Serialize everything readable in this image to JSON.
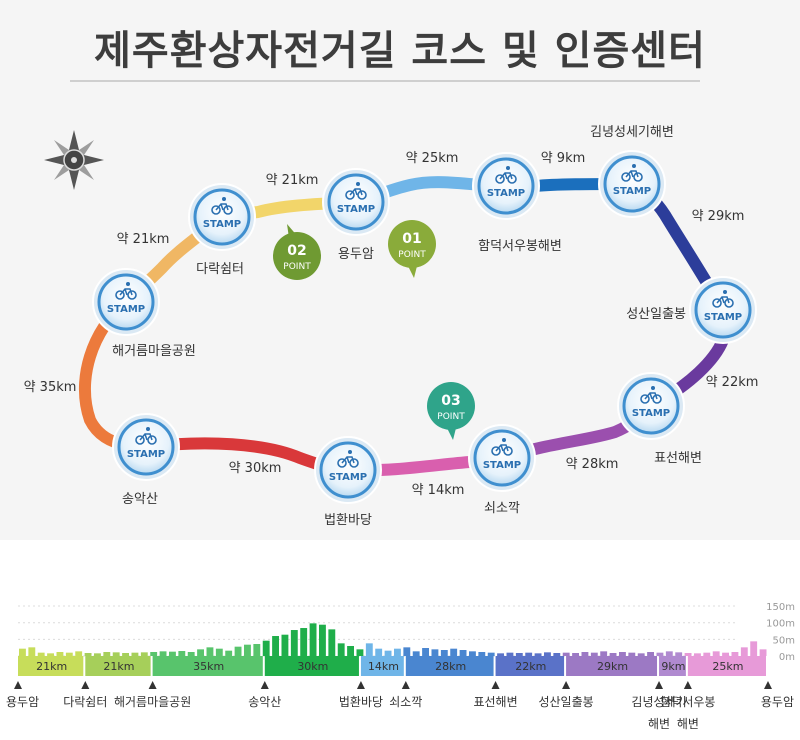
{
  "title": "제주환상자전거길 코스 및 인증센터",
  "colors": {
    "background": "#f5f5f5",
    "stamp_blue": "#3f8fcf",
    "point_green": "#7ca53a",
    "point_teal": "#2fa48a"
  },
  "stamp_label": "STAMP",
  "stations": [
    {
      "name": "용두암"
    },
    {
      "name": "다락쉼터"
    },
    {
      "name": "해거름마을공원"
    },
    {
      "name": "송악산"
    },
    {
      "name": "법환바당"
    },
    {
      "name": "쇠소깍"
    },
    {
      "name": "표선해변"
    },
    {
      "name": "성산일출봉"
    },
    {
      "name": "김녕성세기해변"
    },
    {
      "name": "함덕서우봉해변"
    }
  ],
  "segments": [
    {
      "label": "약 21km",
      "km": 21,
      "color": "#f2d56a"
    },
    {
      "label": "약 21km",
      "km": 21,
      "color": "#f0b764"
    },
    {
      "label": "약 35km",
      "km": 35,
      "color": "#ec7a3c"
    },
    {
      "label": "약 30km",
      "km": 30,
      "color": "#d9383a"
    },
    {
      "label": "약 14km",
      "km": 14,
      "color": "#d95fae"
    },
    {
      "label": "약 28km",
      "km": 28,
      "color": "#9b4fae"
    },
    {
      "label": "약 22km",
      "km": 22,
      "color": "#6a3a9e"
    },
    {
      "label": "약 29km",
      "km": 29,
      "color": "#2c3d9a"
    },
    {
      "label": "약 9km",
      "km": 9,
      "color": "#1b6fbd"
    },
    {
      "label": "약 25km",
      "km": 25,
      "color": "#6fb5e8"
    }
  ],
  "points": [
    {
      "number": "01",
      "label": "POINT",
      "color": "#8aab3a"
    },
    {
      "number": "02",
      "label": "POINT",
      "color": "#6f9a32"
    },
    {
      "number": "03",
      "label": "POINT",
      "color": "#2fa48a"
    }
  ],
  "elevation": {
    "y_ticks": [
      "150m",
      "100m",
      "50m",
      "0m"
    ],
    "bands": [
      {
        "label": "21km",
        "km": 21,
        "color": "#c7dd5a"
      },
      {
        "label": "21km",
        "km": 21,
        "color": "#a6cf5a"
      },
      {
        "label": "35km",
        "km": 35,
        "color": "#58c46c"
      },
      {
        "label": "30km",
        "km": 30,
        "color": "#1fae4a"
      },
      {
        "label": "14km",
        "km": 14,
        "color": "#6fb5e8"
      },
      {
        "label": "28km",
        "km": 28,
        "color": "#4a86d0"
      },
      {
        "label": "22km",
        "km": 22,
        "color": "#5a72c8"
      },
      {
        "label": "29km",
        "km": 29,
        "color": "#9c79c4"
      },
      {
        "label": "9km",
        "km": 9,
        "color": "#b08ad0"
      },
      {
        "label": "25km",
        "km": 25,
        "color": "#e79ad8"
      }
    ],
    "markers": [
      {
        "label": "용두암"
      },
      {
        "label": "다락쉼터"
      },
      {
        "label": "해거름마을공원"
      },
      {
        "label": "송악산"
      },
      {
        "label": "법환바당"
      },
      {
        "label": "쇠소깍"
      },
      {
        "label": "표선해변"
      },
      {
        "label": "성산일출봉"
      },
      {
        "label": "김녕성세기",
        "label2": "해변"
      },
      {
        "label": "함덕서우봉",
        "label2": "해변"
      },
      {
        "label": "용두암"
      }
    ],
    "bars": [
      22,
      26,
      10,
      8,
      12,
      10,
      14,
      9,
      8,
      12,
      11,
      9,
      10,
      11,
      12,
      14,
      13,
      15,
      12,
      20,
      26,
      22,
      16,
      28,
      34,
      36,
      46,
      60,
      64,
      78,
      84,
      98,
      94,
      80,
      38,
      30,
      20,
      38,
      22,
      16,
      22,
      26,
      14,
      24,
      20,
      18,
      22,
      18,
      14,
      12,
      10,
      8,
      10,
      9,
      10,
      8,
      11,
      9,
      10,
      9,
      12,
      10,
      14,
      9,
      12,
      10,
      8,
      12,
      10,
      14,
      11,
      9,
      8,
      10,
      14,
      10,
      12,
      26,
      44,
      20
    ]
  }
}
